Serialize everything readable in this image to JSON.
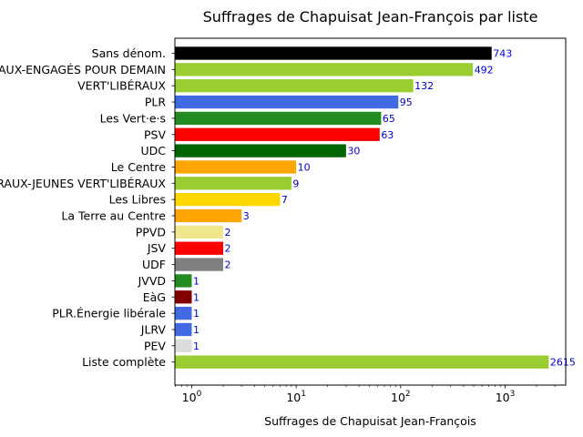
{
  "chart_data": {
    "type": "bar",
    "orientation": "horizontal",
    "title": "Suffrages de Chapuisat Jean-François par liste",
    "xlabel": "Suffrages de Chapuisat Jean-François",
    "ylabel": "",
    "xscale": "log",
    "xlim": [
      0.69,
      3800
    ],
    "grid": false,
    "label_color": "#0000cc",
    "categories": [
      "Sans dénom.",
      "VERT'LIBÉRAUX-ENGAGÉS POUR DEMAIN",
      "VERT'LIBÉRAUX",
      "PLR",
      "Les Vert·e·s",
      "PSV",
      "UDC",
      "Le Centre",
      "VERT'LIBÉRAUX-JEUNES VERT'LIBÉRAUX",
      "Les Libres",
      "La Terre au Centre",
      "PPVD",
      "JSV",
      "UDF",
      "JVVD",
      "EàG",
      "PLR.Énergie libérale",
      "JLRV",
      "PEV",
      "Liste complète"
    ],
    "values": [
      743,
      492,
      132,
      95,
      65,
      63,
      30,
      10,
      9,
      7,
      3,
      2,
      2,
      2,
      1,
      1,
      1,
      1,
      1,
      2615
    ],
    "colors": [
      "#000000",
      "#9acd32",
      "#9acd32",
      "#4169e1",
      "#228b22",
      "#ff0000",
      "#006400",
      "#ffa500",
      "#9acd32",
      "#ffd700",
      "#ffa500",
      "#f0e68c",
      "#ff0000",
      "#808080",
      "#228b22",
      "#800000",
      "#4169e1",
      "#4169e1",
      "#dcdcdc",
      "#9acd32"
    ],
    "ticks": [
      {
        "value": 1,
        "base": "10",
        "exp": "0"
      },
      {
        "value": 10,
        "base": "10",
        "exp": "1"
      },
      {
        "value": 100,
        "base": "10",
        "exp": "2"
      },
      {
        "value": 1000,
        "base": "10",
        "exp": "3"
      }
    ]
  }
}
